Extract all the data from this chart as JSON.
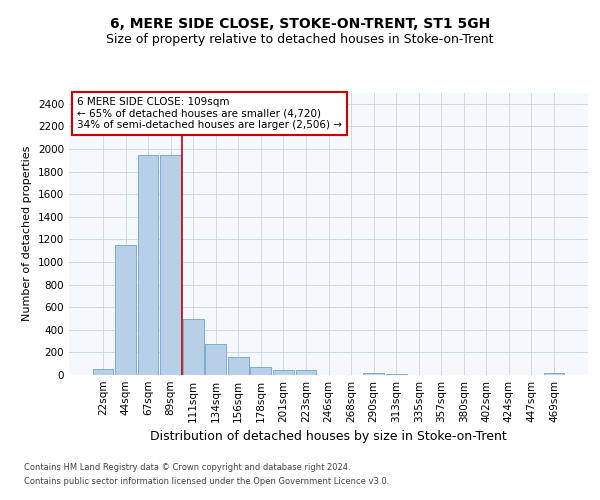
{
  "title": "6, MERE SIDE CLOSE, STOKE-ON-TRENT, ST1 5GH",
  "subtitle": "Size of property relative to detached houses in Stoke-on-Trent",
  "xlabel": "Distribution of detached houses by size in Stoke-on-Trent",
  "ylabel": "Number of detached properties",
  "categories": [
    "22sqm",
    "44sqm",
    "67sqm",
    "89sqm",
    "111sqm",
    "134sqm",
    "156sqm",
    "178sqm",
    "201sqm",
    "223sqm",
    "246sqm",
    "268sqm",
    "290sqm",
    "313sqm",
    "335sqm",
    "357sqm",
    "380sqm",
    "402sqm",
    "424sqm",
    "447sqm",
    "469sqm"
  ],
  "values": [
    50,
    1150,
    1950,
    1950,
    500,
    270,
    155,
    75,
    40,
    40,
    0,
    0,
    15,
    10,
    0,
    0,
    0,
    0,
    0,
    0,
    15
  ],
  "bar_color": "#b8cfe8",
  "bar_edge_color": "#7aaed0",
  "vline_index": 3.5,
  "vline_color": "#cc0000",
  "annotation_title": "6 MERE SIDE CLOSE: 109sqm",
  "annotation_line1": "← 65% of detached houses are smaller (4,720)",
  "annotation_line2": "34% of semi-detached houses are larger (2,506) →",
  "annotation_box_color": "#ffffff",
  "annotation_box_edge": "#cc0000",
  "ylim": [
    0,
    2500
  ],
  "yticks": [
    0,
    200,
    400,
    600,
    800,
    1000,
    1200,
    1400,
    1600,
    1800,
    2000,
    2200,
    2400
  ],
  "footer1": "Contains HM Land Registry data © Crown copyright and database right 2024.",
  "footer2": "Contains public sector information licensed under the Open Government Licence v3.0.",
  "title_fontsize": 10,
  "subtitle_fontsize": 9,
  "xlabel_fontsize": 9,
  "ylabel_fontsize": 8,
  "tick_fontsize": 7.5,
  "annotation_fontsize": 7.5,
  "footer_fontsize": 6,
  "background_color": "#f5f8fd",
  "grid_color": "#c8d4e8"
}
